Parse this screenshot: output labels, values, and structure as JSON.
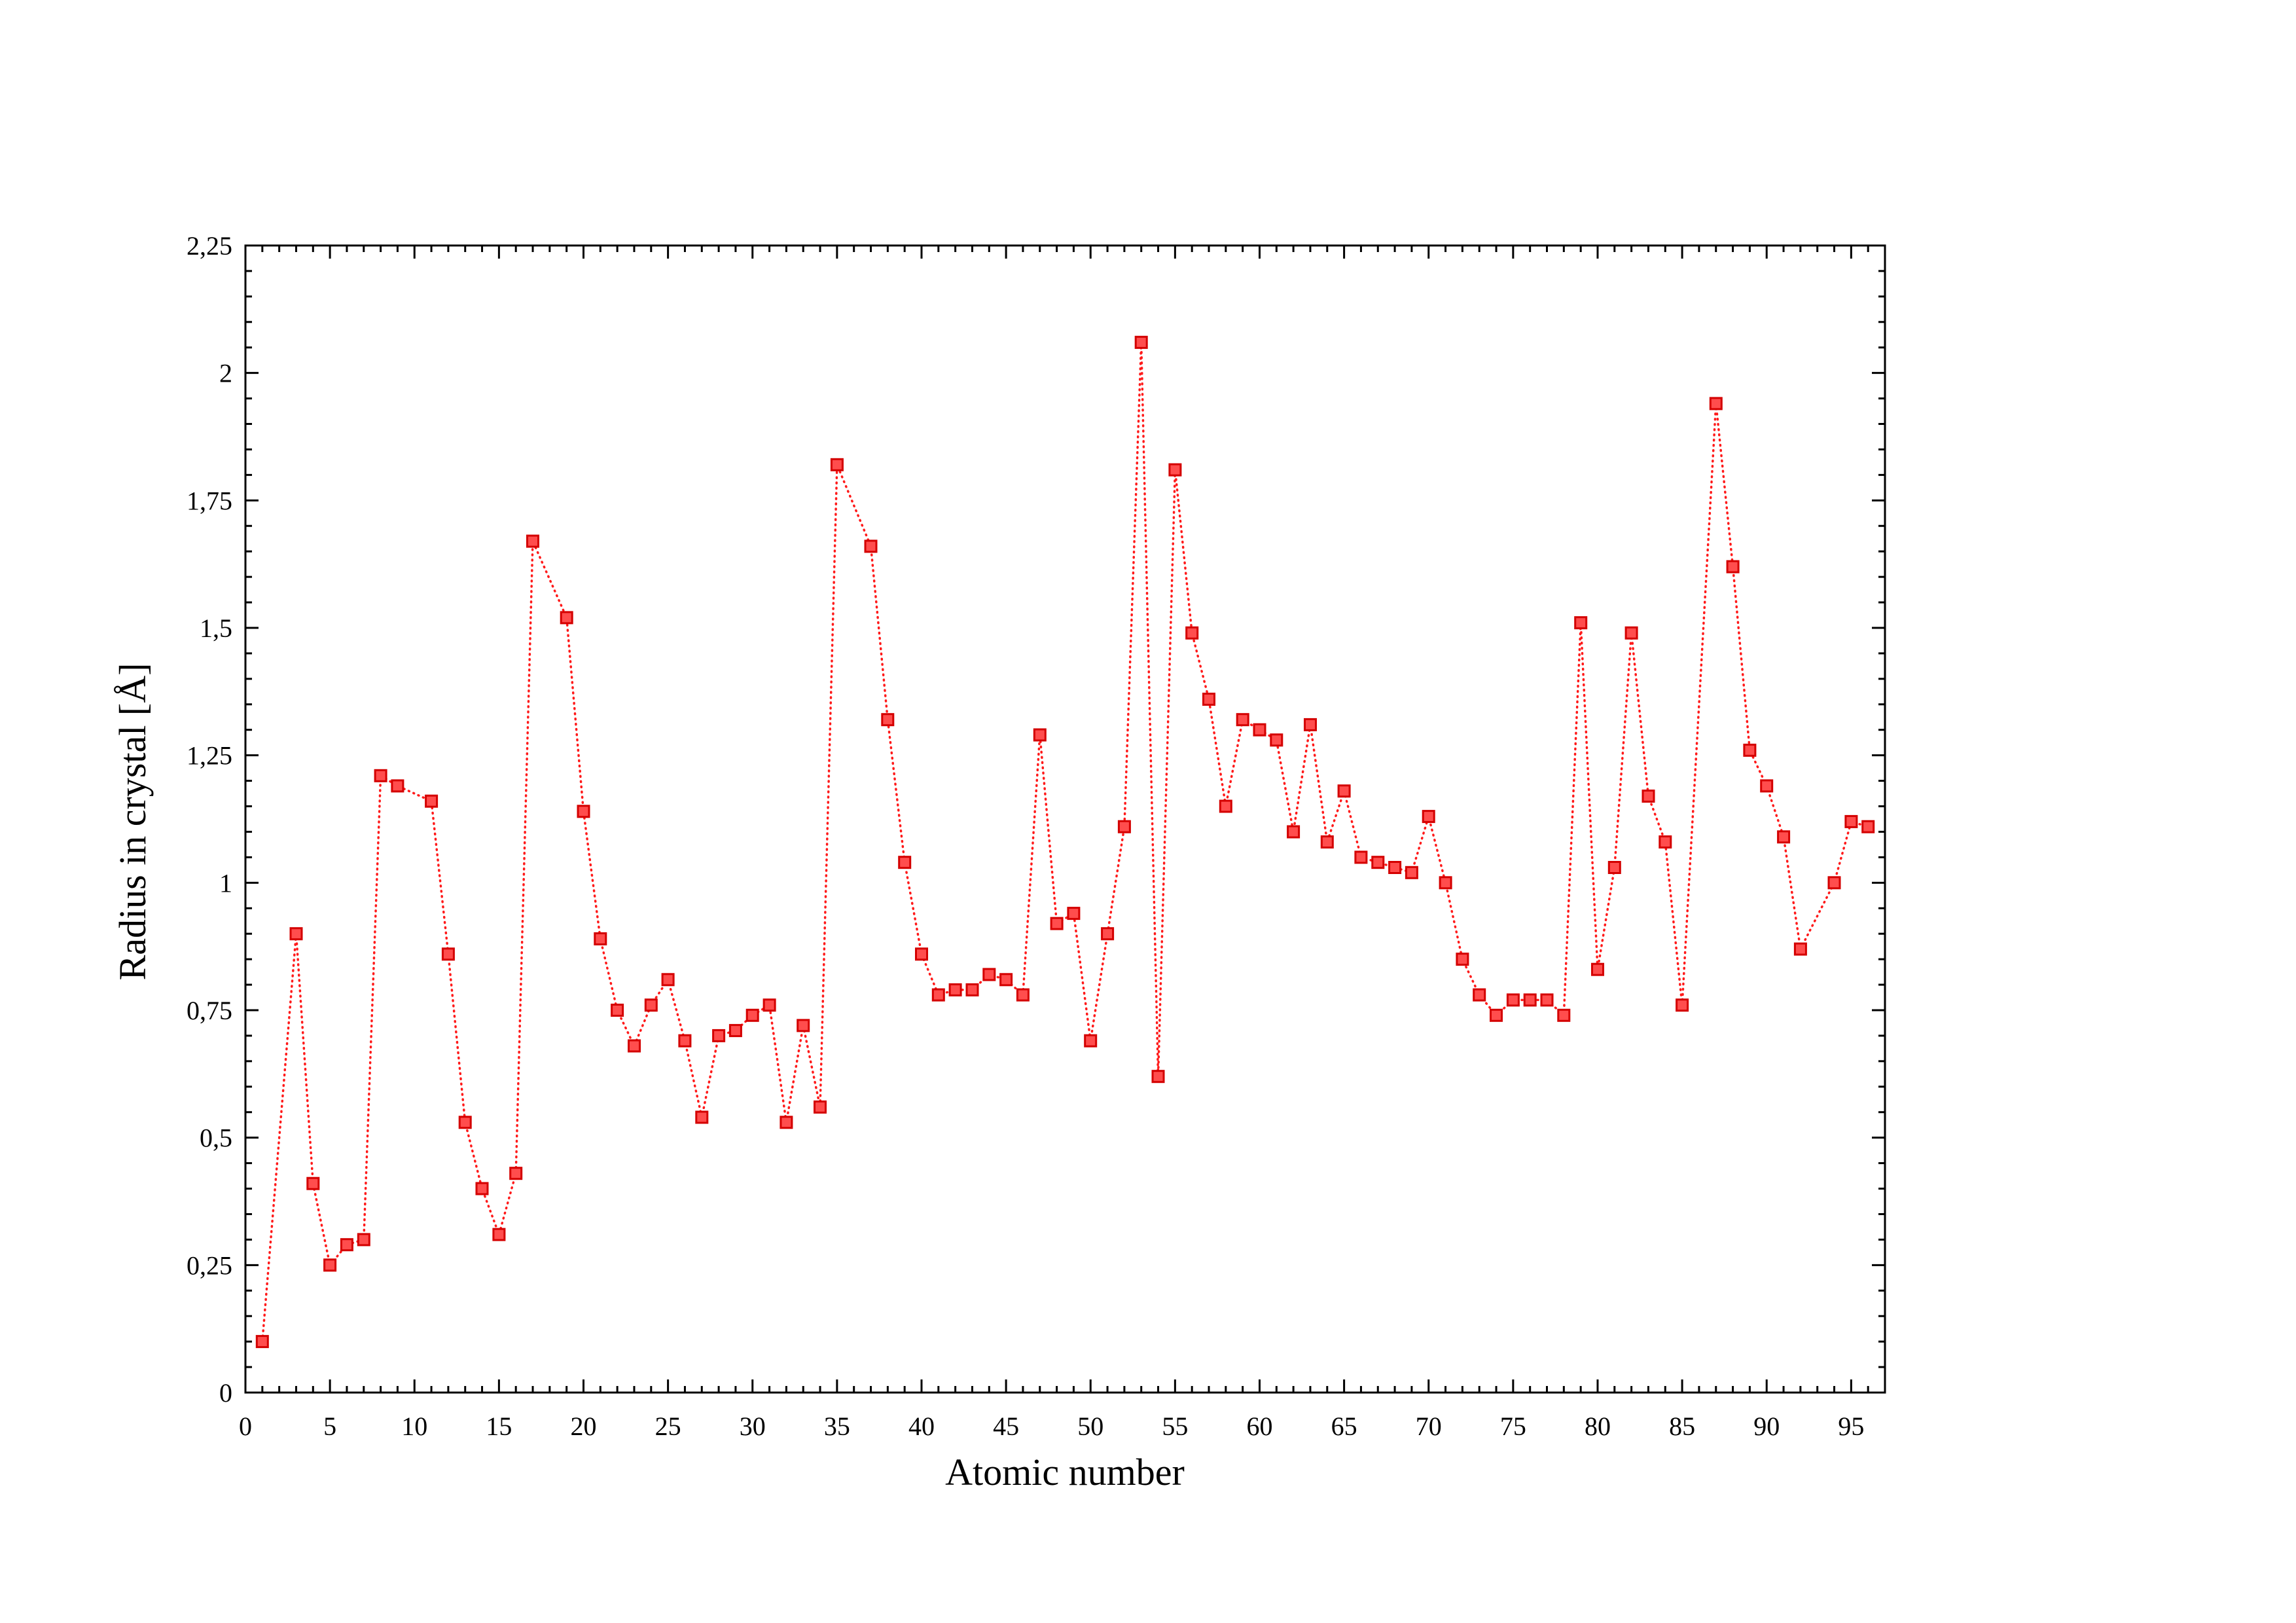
{
  "chart_data": {
    "type": "line",
    "marker": "square",
    "line_style": "dotted",
    "xlabel": "Atomic number",
    "ylabel": "Radius in crystal [Å]",
    "xlim": [
      0,
      97
    ],
    "ylim": [
      0,
      2.25
    ],
    "x_ticks": [
      0,
      5,
      10,
      15,
      20,
      25,
      30,
      35,
      40,
      45,
      50,
      55,
      60,
      65,
      70,
      75,
      80,
      85,
      90,
      95
    ],
    "x_tick_labels": [
      "0",
      "5",
      "10",
      "15",
      "20",
      "25",
      "30",
      "35",
      "40",
      "45",
      "50",
      "55",
      "60",
      "65",
      "70",
      "75",
      "80",
      "85",
      "90",
      "95"
    ],
    "y_ticks": [
      0,
      0.25,
      0.5,
      0.75,
      1,
      1.25,
      1.5,
      1.75,
      2,
      2.25
    ],
    "y_tick_labels": [
      "0",
      "0,25",
      "0,5",
      "0,75",
      "1",
      "1,25",
      "1,5",
      "1,75",
      "2",
      "2,25"
    ],
    "x_minor_step": 1,
    "y_minor_step": 0.05,
    "grid": false,
    "colors": {
      "series_line": "#ff1a1a",
      "marker_fill": "#ff4d4d",
      "marker_edge": "#d40000",
      "axis": "#000000"
    },
    "series": [
      {
        "x": [
          1,
          3,
          4,
          5,
          6,
          7,
          8,
          9,
          11,
          12,
          13,
          14,
          15,
          16,
          17,
          19,
          20,
          21,
          22,
          23,
          24,
          25,
          26,
          27,
          28,
          29,
          30,
          31,
          32,
          33,
          34,
          35,
          37,
          38,
          39,
          40,
          41,
          42,
          43,
          44,
          45,
          46,
          47,
          48,
          49,
          50,
          51,
          52,
          53,
          54,
          55,
          56,
          57,
          58,
          59,
          60,
          61,
          62,
          63,
          64,
          65,
          66,
          67,
          68,
          69,
          70,
          71,
          72,
          73,
          74,
          75,
          76,
          77,
          78,
          79,
          80,
          81,
          82,
          83,
          84,
          85,
          87,
          88,
          89,
          90,
          91,
          92,
          94,
          95,
          96
        ],
        "y": [
          0.1,
          0.9,
          0.41,
          0.25,
          0.29,
          0.3,
          1.21,
          1.19,
          1.16,
          0.86,
          0.53,
          0.4,
          0.31,
          0.43,
          1.67,
          1.52,
          1.14,
          0.89,
          0.75,
          0.68,
          0.76,
          0.81,
          0.69,
          0.54,
          0.7,
          0.71,
          0.74,
          0.76,
          0.53,
          0.72,
          0.56,
          1.82,
          1.66,
          1.32,
          1.04,
          0.86,
          0.78,
          0.79,
          0.79,
          0.82,
          0.81,
          0.78,
          1.29,
          0.92,
          0.94,
          0.69,
          0.9,
          1.11,
          2.06,
          0.62,
          1.81,
          1.49,
          1.36,
          1.15,
          1.32,
          1.3,
          1.28,
          1.1,
          1.31,
          1.08,
          1.18,
          1.05,
          1.04,
          1.03,
          1.02,
          1.13,
          1.0,
          0.85,
          0.78,
          0.74,
          0.77,
          0.77,
          0.77,
          0.74,
          1.51,
          0.83,
          1.03,
          1.49,
          1.17,
          1.08,
          0.76,
          1.94,
          1.62,
          1.26,
          1.19,
          1.09,
          0.87,
          1.0,
          1.12,
          1.11
        ]
      }
    ]
  }
}
